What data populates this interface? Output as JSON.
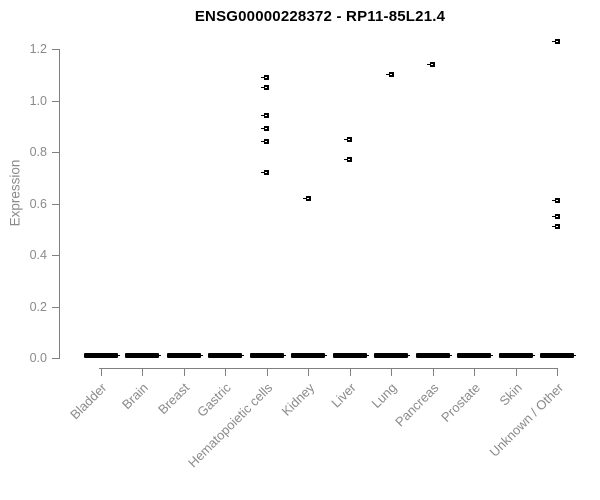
{
  "chart_data": {
    "type": "scatter",
    "title": "ENSG00000228372 - RP11-85L21.4",
    "ylabel": "Expression",
    "xlabel": "",
    "ylim": [
      0.0,
      1.2
    ],
    "ytick_labels": [
      "0.0",
      "0.2",
      "0.4",
      "0.6",
      "0.8",
      "1.0",
      "1.2"
    ],
    "grid": false,
    "legend": false,
    "categories": [
      "Bladder",
      "Brain",
      "Breast",
      "Gastric",
      "Hematopoietic cells",
      "Kidney",
      "Liver",
      "Lung",
      "Pancreas",
      "Prostate",
      "Skin",
      "Unknown / Other"
    ],
    "series": [
      {
        "name": "zero-expression-dash",
        "marker": "thick-dash",
        "values_per_category": [
          0,
          0,
          0,
          0,
          0,
          0,
          0,
          0,
          0,
          0,
          0,
          0
        ]
      },
      {
        "name": "expression-outlier-points",
        "marker": "small-square",
        "points": [
          {
            "category": "Hematopoietic cells",
            "values": [
              1.09,
              1.05,
              0.94,
              0.89,
              0.84,
              0.72
            ]
          },
          {
            "category": "Kidney",
            "values": [
              0.62
            ]
          },
          {
            "category": "Liver",
            "values": [
              0.85,
              0.77
            ]
          },
          {
            "category": "Lung",
            "values": [
              1.1
            ]
          },
          {
            "category": "Pancreas",
            "values": [
              1.14
            ]
          },
          {
            "category": "Unknown / Other",
            "values": [
              1.23,
              0.61,
              0.55,
              0.51
            ]
          }
        ]
      }
    ],
    "colors": {
      "points": "#000000",
      "axis": "#808080",
      "tick_labels": "#8a8a8a",
      "title": "#000000",
      "background": "#ffffff"
    }
  }
}
